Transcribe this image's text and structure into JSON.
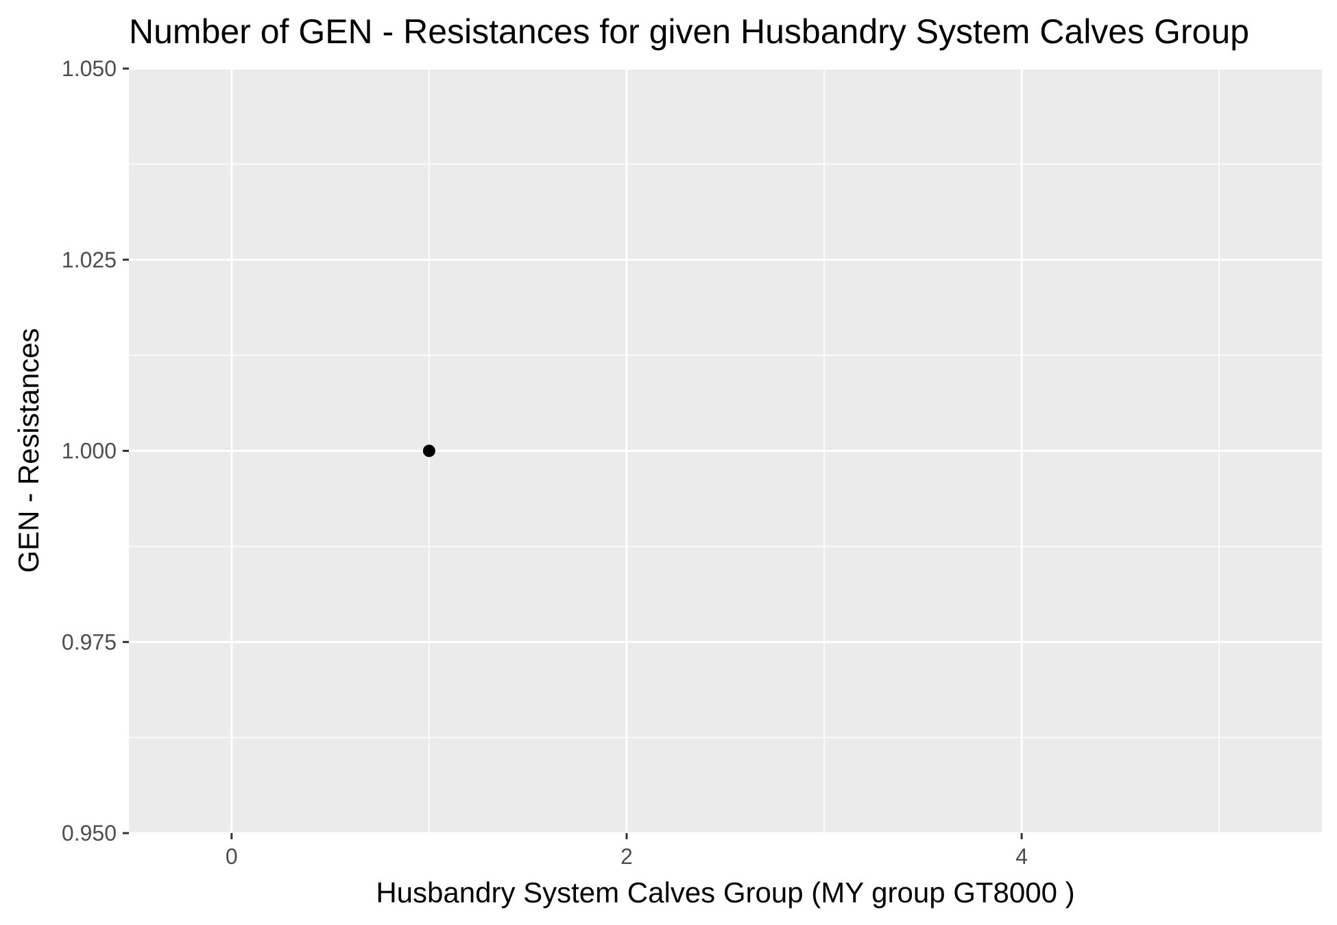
{
  "chart_data": {
    "type": "scatter",
    "title": "Number of GEN - Resistances for given Husbandry System Calves Group",
    "xlabel": "Husbandry System Calves Group     (MY group GT8000 )",
    "ylabel": "GEN - Resistances",
    "xlim": [
      -0.52,
      5.52
    ],
    "ylim": [
      0.95,
      1.05
    ],
    "x_major_ticks": [
      0,
      2,
      4
    ],
    "x_tick_labels": [
      "0",
      "2",
      "4"
    ],
    "x_minor_ticks": [
      1,
      3,
      5
    ],
    "y_major_ticks": [
      0.95,
      0.975,
      1.0,
      1.025,
      1.05
    ],
    "y_tick_labels": [
      "0.950",
      "0.975",
      "1.000",
      "1.025",
      "1.050"
    ],
    "y_minor_ticks": [
      0.9625,
      0.9875,
      1.0125,
      1.0375
    ],
    "grid": true,
    "legend": "none",
    "series": [
      {
        "x": [
          1
        ],
        "y": [
          1.0
        ]
      }
    ],
    "colors": {
      "panel": "#ebebeb",
      "grid": "#ffffff",
      "point": "#000000",
      "tick": "#333333"
    }
  }
}
